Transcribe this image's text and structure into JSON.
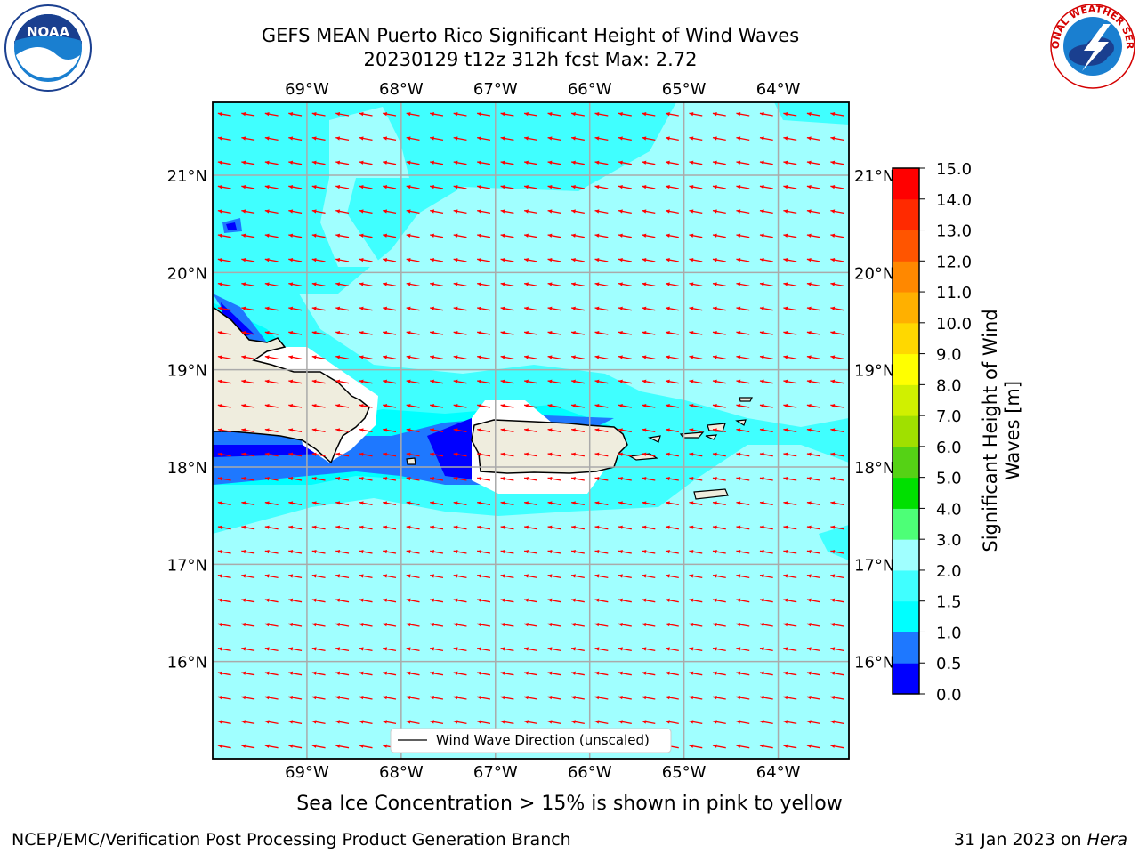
{
  "title": {
    "line1": "GEFS MEAN Puerto Rico Significant Height of Wind Waves",
    "line2": "20230129 t12z 312h fcst   Max: 2.72"
  },
  "logos": {
    "left": {
      "icon": "noaa-logo-icon",
      "text": "NOAA"
    },
    "right": {
      "icon": "nws-logo-icon",
      "text": "NATIONAL WEATHER SERVICE"
    }
  },
  "map": {
    "lon_labels": [
      "69°W",
      "68°W",
      "67°W",
      "66°W",
      "65°W",
      "64°W"
    ],
    "lat_labels": [
      "21°N",
      "20°N",
      "19°N",
      "18°N",
      "17°N",
      "16°N"
    ],
    "lon_range": [
      -70,
      -63.25
    ],
    "lat_range": [
      15,
      21.75
    ],
    "legend_label": "Wind Wave Direction (unscaled)",
    "arrow_color": "#ff0000",
    "land_color": "#efedde"
  },
  "colorbar": {
    "label": "Significant Height of Wind Waves [m]",
    "ticks": [
      "0.0",
      "0.5",
      "1.0",
      "1.5",
      "2.0",
      "3.0",
      "4.0",
      "5.0",
      "6.0",
      "7.0",
      "8.0",
      "9.0",
      "10.0",
      "11.0",
      "12.0",
      "13.0",
      "14.0",
      "15.0"
    ],
    "colors": [
      "#0000ff",
      "#1e78ff",
      "#00ffff",
      "#40ffff",
      "#a0ffff",
      "#4dff77",
      "#00e000",
      "#55d215",
      "#a0e000",
      "#d0f000",
      "#ffff00",
      "#ffd800",
      "#ffb000",
      "#ff8800",
      "#ff5500",
      "#ff2a00",
      "#ff0000"
    ]
  },
  "notes": {
    "sea_ice": "Sea Ice Concentration > 15% is shown in pink to yellow"
  },
  "footer": {
    "left": "NCEP/EMC/Verification Post Processing Product Generation Branch",
    "right_prefix": "31 Jan 2023 on ",
    "right_host": "Hera"
  }
}
